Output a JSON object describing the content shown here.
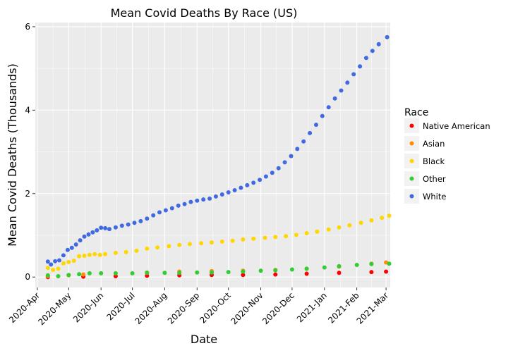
{
  "chart_data": {
    "type": "scatter",
    "title": "Mean Covid Deaths By Race (US)",
    "xlabel": "Date",
    "ylabel": "Mean Covid Deaths (Thousands)",
    "x_type": "date",
    "xlim": [
      "2020-03-30",
      "2021-03-05"
    ],
    "ylim": [
      -0.25,
      6.1
    ],
    "x_ticks": [
      {
        "date": "2020-04-01",
        "label": "2020-Apr"
      },
      {
        "date": "2020-05-01",
        "label": "2020-May"
      },
      {
        "date": "2020-06-01",
        "label": "2020-Jun"
      },
      {
        "date": "2020-07-01",
        "label": "2020-Jul"
      },
      {
        "date": "2020-08-01",
        "label": "2020-Aug"
      },
      {
        "date": "2020-09-01",
        "label": "2020-Sep"
      },
      {
        "date": "2020-10-01",
        "label": "2020-Oct"
      },
      {
        "date": "2020-11-01",
        "label": "2020-Nov"
      },
      {
        "date": "2020-12-01",
        "label": "2020-Dec"
      },
      {
        "date": "2021-01-01",
        "label": "2021-Jan"
      },
      {
        "date": "2021-02-01",
        "label": "2021-Feb"
      },
      {
        "date": "2021-03-01",
        "label": "2021-Mar"
      }
    ],
    "y_ticks": [
      0,
      2,
      4,
      6
    ],
    "grid": true,
    "legend": {
      "title": "Race",
      "position": "right"
    },
    "series": [
      {
        "name": "Native American",
        "color": "#ff0000",
        "points": [
          [
            "2020-04-11",
            0.0
          ],
          [
            "2020-05-15",
            0.01
          ],
          [
            "2020-06-15",
            0.02
          ],
          [
            "2020-07-15",
            0.03
          ],
          [
            "2020-08-15",
            0.04
          ],
          [
            "2020-09-15",
            0.05
          ],
          [
            "2020-10-15",
            0.05
          ],
          [
            "2020-11-15",
            0.06
          ],
          [
            "2020-12-15",
            0.08
          ],
          [
            "2021-01-15",
            0.1
          ],
          [
            "2021-02-15",
            0.12
          ],
          [
            "2021-03-01",
            0.13
          ]
        ]
      },
      {
        "name": "Asian",
        "color": "#ff8c00",
        "points": [
          [
            "2020-04-11",
            0.02
          ],
          [
            "2020-05-01",
            0.04
          ],
          [
            "2020-05-15",
            0.06
          ],
          [
            "2020-06-15",
            0.09
          ],
          [
            "2020-07-15",
            0.11
          ],
          [
            "2020-08-15",
            0.13
          ],
          [
            "2020-09-15",
            0.14
          ],
          [
            "2020-10-15",
            0.15
          ],
          [
            "2020-11-15",
            0.17
          ],
          [
            "2020-12-15",
            0.2
          ],
          [
            "2021-01-15",
            0.25
          ],
          [
            "2021-02-15",
            0.32
          ],
          [
            "2021-03-01",
            0.35
          ]
        ]
      },
      {
        "name": "Black",
        "color": "#ffd700",
        "points": [
          [
            "2020-04-11",
            0.22
          ],
          [
            "2020-04-16",
            0.17
          ],
          [
            "2020-04-21",
            0.2
          ],
          [
            "2020-04-26",
            0.33
          ],
          [
            "2020-05-01",
            0.36
          ],
          [
            "2020-05-06",
            0.39
          ],
          [
            "2020-05-11",
            0.5
          ],
          [
            "2020-05-16",
            0.51
          ],
          [
            "2020-05-21",
            0.53
          ],
          [
            "2020-05-26",
            0.55
          ],
          [
            "2020-05-31",
            0.53
          ],
          [
            "2020-06-05",
            0.55
          ],
          [
            "2020-06-15",
            0.58
          ],
          [
            "2020-06-25",
            0.6
          ],
          [
            "2020-07-05",
            0.63
          ],
          [
            "2020-07-15",
            0.68
          ],
          [
            "2020-07-25",
            0.71
          ],
          [
            "2020-08-05",
            0.74
          ],
          [
            "2020-08-15",
            0.77
          ],
          [
            "2020-08-25",
            0.79
          ],
          [
            "2020-09-05",
            0.81
          ],
          [
            "2020-09-15",
            0.83
          ],
          [
            "2020-09-25",
            0.85
          ],
          [
            "2020-10-05",
            0.87
          ],
          [
            "2020-10-15",
            0.9
          ],
          [
            "2020-10-25",
            0.92
          ],
          [
            "2020-11-05",
            0.94
          ],
          [
            "2020-11-15",
            0.96
          ],
          [
            "2020-11-25",
            0.98
          ],
          [
            "2020-12-05",
            1.01
          ],
          [
            "2020-12-15",
            1.05
          ],
          [
            "2020-12-25",
            1.09
          ],
          [
            "2021-01-05",
            1.14
          ],
          [
            "2021-01-15",
            1.19
          ],
          [
            "2021-01-25",
            1.24
          ],
          [
            "2021-02-05",
            1.3
          ],
          [
            "2021-02-15",
            1.36
          ],
          [
            "2021-02-25",
            1.42
          ],
          [
            "2021-03-04",
            1.47
          ]
        ]
      },
      {
        "name": "Other",
        "color": "#32cd32",
        "points": [
          [
            "2020-04-11",
            0.04
          ],
          [
            "2020-04-21",
            0.02
          ],
          [
            "2020-05-01",
            0.05
          ],
          [
            "2020-05-11",
            0.07
          ],
          [
            "2020-05-21",
            0.09
          ],
          [
            "2020-06-01",
            0.09
          ],
          [
            "2020-06-15",
            0.09
          ],
          [
            "2020-07-01",
            0.09
          ],
          [
            "2020-07-15",
            0.1
          ],
          [
            "2020-08-01",
            0.1
          ],
          [
            "2020-08-15",
            0.1
          ],
          [
            "2020-09-01",
            0.11
          ],
          [
            "2020-09-15",
            0.11
          ],
          [
            "2020-10-01",
            0.12
          ],
          [
            "2020-10-15",
            0.13
          ],
          [
            "2020-11-01",
            0.15
          ],
          [
            "2020-11-15",
            0.16
          ],
          [
            "2020-12-01",
            0.18
          ],
          [
            "2020-12-15",
            0.2
          ],
          [
            "2021-01-01",
            0.23
          ],
          [
            "2021-01-15",
            0.26
          ],
          [
            "2021-02-01",
            0.29
          ],
          [
            "2021-02-15",
            0.31
          ],
          [
            "2021-03-04",
            0.32
          ]
        ]
      },
      {
        "name": "White",
        "color": "#4169e1",
        "points": [
          [
            "2020-04-11",
            0.37
          ],
          [
            "2020-04-14",
            0.3
          ],
          [
            "2020-04-18",
            0.38
          ],
          [
            "2020-04-22",
            0.4
          ],
          [
            "2020-04-26",
            0.52
          ],
          [
            "2020-04-30",
            0.65
          ],
          [
            "2020-05-04",
            0.7
          ],
          [
            "2020-05-08",
            0.78
          ],
          [
            "2020-05-12",
            0.88
          ],
          [
            "2020-05-16",
            0.97
          ],
          [
            "2020-05-20",
            1.02
          ],
          [
            "2020-05-24",
            1.07
          ],
          [
            "2020-05-28",
            1.12
          ],
          [
            "2020-06-01",
            1.18
          ],
          [
            "2020-06-05",
            1.17
          ],
          [
            "2020-06-09",
            1.15
          ],
          [
            "2020-06-15",
            1.19
          ],
          [
            "2020-06-21",
            1.23
          ],
          [
            "2020-06-27",
            1.26
          ],
          [
            "2020-07-03",
            1.3
          ],
          [
            "2020-07-09",
            1.34
          ],
          [
            "2020-07-15",
            1.4
          ],
          [
            "2020-07-21",
            1.48
          ],
          [
            "2020-07-27",
            1.55
          ],
          [
            "2020-08-02",
            1.6
          ],
          [
            "2020-08-08",
            1.65
          ],
          [
            "2020-08-14",
            1.71
          ],
          [
            "2020-08-20",
            1.75
          ],
          [
            "2020-08-26",
            1.8
          ],
          [
            "2020-09-01",
            1.83
          ],
          [
            "2020-09-07",
            1.86
          ],
          [
            "2020-09-13",
            1.88
          ],
          [
            "2020-09-19",
            1.93
          ],
          [
            "2020-09-25",
            1.98
          ],
          [
            "2020-10-01",
            2.03
          ],
          [
            "2020-10-07",
            2.08
          ],
          [
            "2020-10-13",
            2.14
          ],
          [
            "2020-10-19",
            2.2
          ],
          [
            "2020-10-25",
            2.26
          ],
          [
            "2020-10-31",
            2.33
          ],
          [
            "2020-11-06",
            2.41
          ],
          [
            "2020-11-12",
            2.5
          ],
          [
            "2020-11-18",
            2.61
          ],
          [
            "2020-11-24",
            2.75
          ],
          [
            "2020-11-30",
            2.9
          ],
          [
            "2020-12-06",
            3.07
          ],
          [
            "2020-12-12",
            3.25
          ],
          [
            "2020-12-18",
            3.45
          ],
          [
            "2020-12-24",
            3.65
          ],
          [
            "2020-12-30",
            3.86
          ],
          [
            "2021-01-05",
            4.07
          ],
          [
            "2021-01-11",
            4.28
          ],
          [
            "2021-01-17",
            4.47
          ],
          [
            "2021-01-23",
            4.66
          ],
          [
            "2021-01-29",
            4.86
          ],
          [
            "2021-02-04",
            5.05
          ],
          [
            "2021-02-10",
            5.25
          ],
          [
            "2021-02-16",
            5.42
          ],
          [
            "2021-02-22",
            5.58
          ],
          [
            "2021-03-02",
            5.75
          ]
        ]
      }
    ]
  }
}
